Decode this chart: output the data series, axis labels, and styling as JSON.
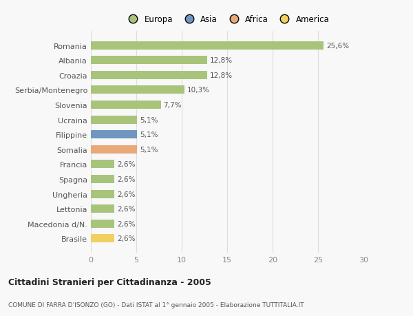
{
  "categories": [
    "Brasile",
    "Macedonia d/N.",
    "Lettonia",
    "Ungheria",
    "Spagna",
    "Francia",
    "Somalia",
    "Filippine",
    "Ucraina",
    "Slovenia",
    "Serbia/Montenegro",
    "Croazia",
    "Albania",
    "Romania"
  ],
  "values": [
    2.6,
    2.6,
    2.6,
    2.6,
    2.6,
    2.6,
    5.1,
    5.1,
    5.1,
    7.7,
    10.3,
    12.8,
    12.8,
    25.6
  ],
  "labels": [
    "2,6%",
    "2,6%",
    "2,6%",
    "2,6%",
    "2,6%",
    "2,6%",
    "5,1%",
    "5,1%",
    "5,1%",
    "7,7%",
    "10,3%",
    "12,8%",
    "12,8%",
    "25,6%"
  ],
  "colors": [
    "#f0d060",
    "#a8c47a",
    "#a8c47a",
    "#a8c47a",
    "#a8c47a",
    "#a8c47a",
    "#e8a878",
    "#7096c0",
    "#a8c47a",
    "#a8c47a",
    "#a8c47a",
    "#a8c47a",
    "#a8c47a",
    "#a8c47a"
  ],
  "legend": [
    {
      "label": "Europa",
      "color": "#a8c47a"
    },
    {
      "label": "Asia",
      "color": "#7096c0"
    },
    {
      "label": "Africa",
      "color": "#e8a878"
    },
    {
      "label": "America",
      "color": "#f0d060"
    }
  ],
  "title1": "Cittadini Stranieri per Cittadinanza - 2005",
  "title2": "COMUNE DI FARRA D’ISONZO (GO) - Dati ISTAT al 1° gennaio 2005 - Elaborazione TUTTITALIA.IT",
  "xlim": [
    0,
    30
  ],
  "xticks": [
    0,
    5,
    10,
    15,
    20,
    25,
    30
  ],
  "background_color": "#f8f8f8",
  "bar_height": 0.55,
  "grid_color": "#dddddd"
}
